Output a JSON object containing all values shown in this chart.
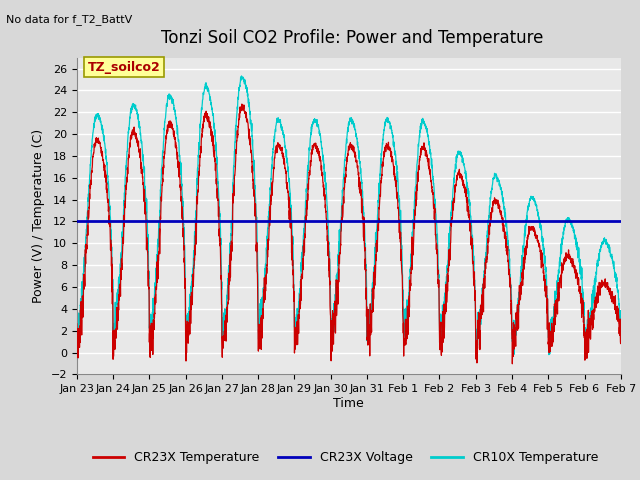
{
  "title": "Tonzi Soil CO2 Profile: Power and Temperature",
  "subtitle": "No data for f_T2_BattV",
  "ylabel": "Power (V) / Temperature (C)",
  "xlabel": "Time",
  "ylim": [
    -2,
    27
  ],
  "yticks": [
    -2,
    0,
    2,
    4,
    6,
    8,
    10,
    12,
    14,
    16,
    18,
    20,
    22,
    24,
    26
  ],
  "voltage_value": 12.0,
  "fig_bg_color": "#d8d8d8",
  "plot_bg_color": "#e8e8e8",
  "cr23x_color": "#cc0000",
  "cr10x_color": "#00cccc",
  "voltage_color": "#0000bb",
  "annotation_box_color": "#ffff99",
  "annotation_text": "TZ_soilco2",
  "annotation_text_color": "#aa0000",
  "legend_labels": [
    "CR23X Temperature",
    "CR23X Voltage",
    "CR10X Temperature"
  ],
  "title_fontsize": 12,
  "axis_fontsize": 9,
  "tick_fontsize": 8,
  "legend_fontsize": 9,
  "xtick_labels": [
    "Jan 23",
    "Jan 24",
    "Jan 25",
    "Jan 26",
    "Jan 27",
    "Jan 28",
    "Jan 29",
    "Jan 30",
    "Jan 31",
    "Feb 1",
    "Feb 2",
    "Feb 3",
    "Feb 4",
    "Feb 5",
    "Feb 6",
    "Feb 7"
  ]
}
